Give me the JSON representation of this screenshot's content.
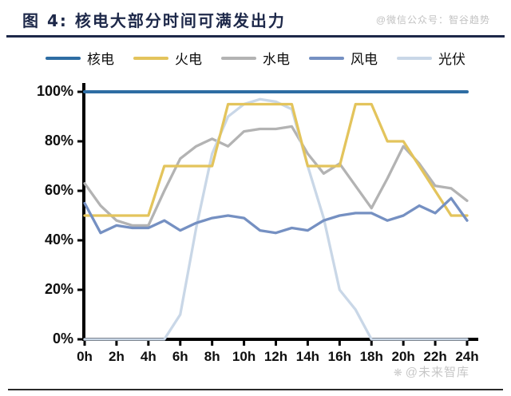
{
  "header": {
    "title": "图 4:  核电大部分时间可满发出力",
    "watermark_top": "@微信公众号：智谷趋势"
  },
  "footer": {
    "watermark": "@未来智库",
    "logo_icon": "❋"
  },
  "colors": {
    "title_navy": "#1d2849",
    "axis_black": "#000000",
    "watermark_gray": "#c7c7c7"
  },
  "chart_data": {
    "type": "line",
    "title": "核电大部分时间可满发出力",
    "xlabel": "",
    "ylabel": "",
    "ylim": [
      0,
      100
    ],
    "grid": false,
    "legend_position": "top",
    "x_hours": [
      0,
      1,
      2,
      3,
      4,
      5,
      6,
      7,
      8,
      9,
      10,
      11,
      12,
      13,
      14,
      15,
      16,
      17,
      18,
      19,
      20,
      21,
      22,
      23,
      24
    ],
    "x_tick_labels": [
      "0h",
      "2h",
      "4h",
      "6h",
      "8h",
      "10h",
      "12h",
      "14h",
      "16h",
      "18h",
      "20h",
      "22h",
      "24h"
    ],
    "y_tick_labels": [
      "0%",
      "20%",
      "40%",
      "60%",
      "80%",
      "100%"
    ],
    "series": [
      {
        "name": "核电",
        "color": "#2e6da3",
        "values": [
          100,
          100,
          100,
          100,
          100,
          100,
          100,
          100,
          100,
          100,
          100,
          100,
          100,
          100,
          100,
          100,
          100,
          100,
          100,
          100,
          100,
          100,
          100,
          100,
          100
        ]
      },
      {
        "name": "火电",
        "color": "#e3c45c",
        "values": [
          50,
          50,
          50,
          50,
          50,
          70,
          70,
          70,
          70,
          95,
          95,
          95,
          95,
          95,
          70,
          70,
          70,
          95,
          95,
          80,
          80,
          70,
          60,
          50,
          50
        ]
      },
      {
        "name": "水电",
        "color": "#b3b3b3",
        "values": [
          63,
          54,
          48,
          46,
          46,
          60,
          73,
          78,
          81,
          78,
          84,
          85,
          85,
          86,
          75,
          67,
          71,
          62,
          53,
          65,
          78,
          71,
          62,
          61,
          56
        ]
      },
      {
        "name": "风电",
        "color": "#7590c2",
        "values": [
          55,
          43,
          46,
          45,
          45,
          48,
          44,
          47,
          49,
          50,
          49,
          44,
          43,
          45,
          44,
          48,
          50,
          51,
          51,
          48,
          50,
          54,
          51,
          57,
          48
        ]
      },
      {
        "name": "光伏",
        "color": "#c9d7e7",
        "values": [
          0,
          0,
          0,
          0,
          0,
          0,
          10,
          45,
          75,
          90,
          95,
          97,
          96,
          93,
          70,
          49,
          20,
          12,
          0,
          0,
          0,
          0,
          0,
          0,
          0
        ]
      }
    ]
  }
}
